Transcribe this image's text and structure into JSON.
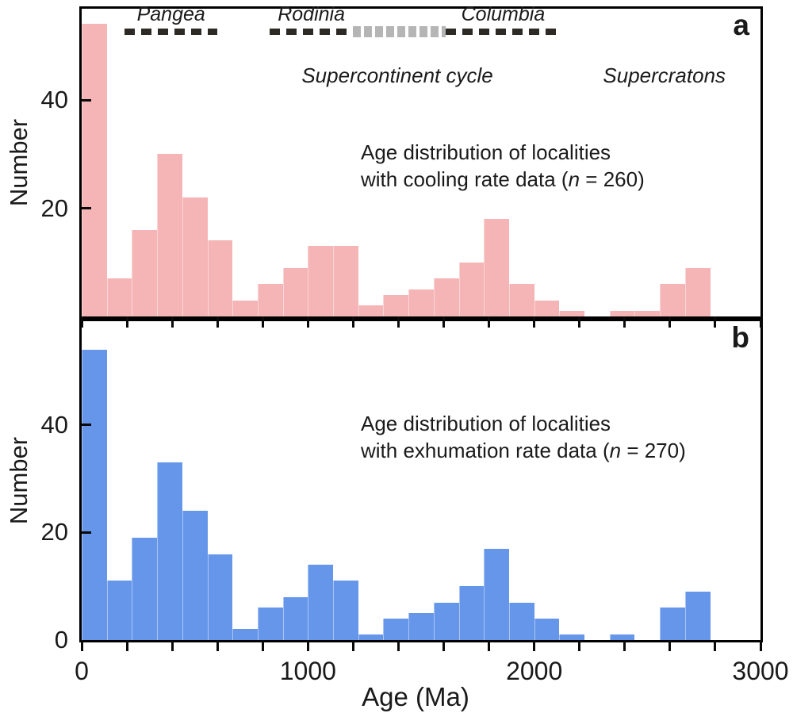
{
  "axes": {
    "xlabel": "Age (Ma)",
    "ylabel": "Number",
    "x_range": [
      0,
      3000
    ],
    "x_tick_labels": [
      0,
      1000,
      2000,
      3000
    ],
    "x_minor_tick_interval_ma": 200
  },
  "annotations": {
    "supercontinent_cycle_label": "Supercontinent cycle",
    "supercratons_label": "Supercratons",
    "supercontinents": [
      {
        "name": "Pangea",
        "start_ma": 190,
        "end_ma": 600,
        "style": "black-dashed"
      },
      {
        "name": "Rodinia",
        "start_ma": 830,
        "end_ma": 1200,
        "style": "black-dashed"
      },
      {
        "name": "Columbia",
        "start_ma": 1610,
        "end_ma": 2115,
        "style": "black-dashed"
      }
    ],
    "transition_band": {
      "start_ma": 1200,
      "end_ma": 1610,
      "style": "gray-blocks"
    },
    "supercratons_center_ma": 2575,
    "cycle_label_center_ma": 1395
  },
  "colors": {
    "panel_a_fill": "#f5b4b6",
    "panel_b_fill": "#6596ea",
    "axis": "#000000",
    "dash_black": "#2d2a26",
    "dash_gray": "#b5b5b5"
  },
  "chart_data": [
    {
      "type": "bar",
      "subtype": "histogram",
      "panel": "a",
      "title_line1": "Age distribution of localities",
      "title_line2_pre": "with cooling rate data (",
      "title_n_symbol": "n",
      "title_line2_post": " = 260)",
      "n": 260,
      "xlabel": "Age (Ma)",
      "ylabel": "Number",
      "xlim": [
        0,
        3000
      ],
      "ylim": [
        0,
        57
      ],
      "yticks": [
        20,
        40
      ],
      "bin_width_ma": 111.1,
      "bin_start_ma": [
        0,
        111,
        222,
        333,
        444,
        556,
        667,
        778,
        889,
        1000,
        1111,
        1222,
        1333,
        1444,
        1556,
        1667,
        1778,
        1889,
        2000,
        2111,
        2222,
        2333,
        2444,
        2556,
        2667,
        2778,
        2889
      ],
      "counts": [
        54,
        7,
        16,
        30,
        22,
        14,
        3,
        6,
        9,
        13,
        13,
        2,
        4,
        5,
        7,
        10,
        18,
        6,
        3,
        1,
        0,
        1,
        1,
        6,
        9,
        0,
        0
      ]
    },
    {
      "type": "bar",
      "subtype": "histogram",
      "panel": "b",
      "title_line1": "Age distribution of localities",
      "title_line2_pre": "with exhumation rate data (",
      "title_n_symbol": "n",
      "title_line2_post": " = 270)",
      "n": 270,
      "xlabel": "Age (Ma)",
      "ylabel": "Number",
      "xlim": [
        0,
        3000
      ],
      "ylim": [
        0,
        59
      ],
      "yticks": [
        0,
        20,
        40
      ],
      "bin_width_ma": 111.1,
      "bin_start_ma": [
        0,
        111,
        222,
        333,
        444,
        556,
        667,
        778,
        889,
        1000,
        1111,
        1222,
        1333,
        1444,
        1556,
        1667,
        1778,
        1889,
        2000,
        2111,
        2222,
        2333,
        2444,
        2556,
        2667,
        2778,
        2889
      ],
      "counts": [
        54,
        11,
        19,
        33,
        24,
        16,
        2,
        6,
        8,
        14,
        11,
        1,
        4,
        5,
        7,
        10,
        17,
        7,
        4,
        1,
        0,
        1,
        0,
        6,
        9,
        0,
        0
      ]
    }
  ]
}
